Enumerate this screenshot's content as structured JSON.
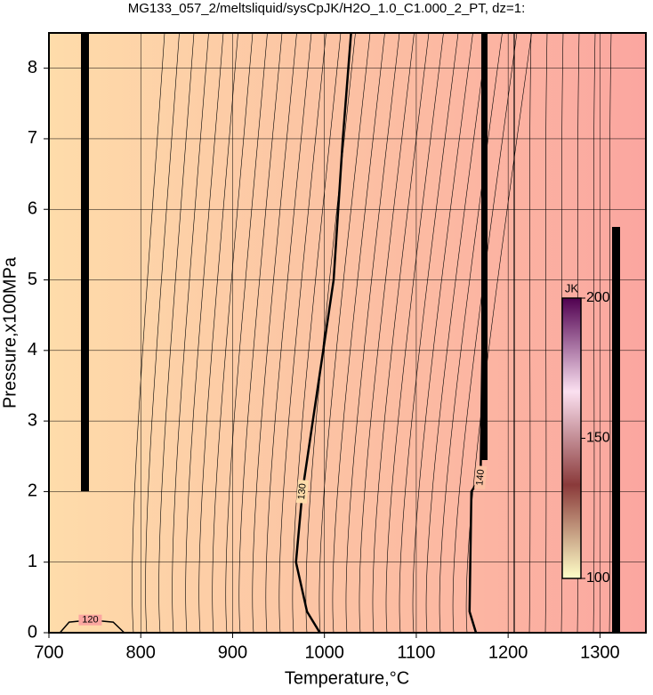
{
  "chart_data": {
    "type": "contour",
    "title": "MG133_057_2/meltsliquid/sysCpJK/H2O_1.0_C1.000_2_PT, dz=1:",
    "x_label": "Temperature,°C",
    "y_label": "Pressure,x100MPa",
    "xlim": [
      700,
      1350
    ],
    "xticks": [
      700,
      800,
      900,
      1000,
      1100,
      1200,
      1300
    ],
    "ylim": [
      0,
      8.5
    ],
    "yticks": [
      0,
      1,
      2,
      3,
      4,
      5,
      6,
      7,
      8
    ],
    "grid": true,
    "background_colors": [
      "#fedcaa",
      "#fcc1a3",
      "#fba6a0"
    ],
    "colorbar": {
      "label": "JK",
      "lim": [
        100,
        200
      ],
      "ticks": [
        100,
        150,
        200
      ],
      "colors": [
        "#ffffc8",
        "#8a3a3a",
        "#fbe0f0",
        "#500050"
      ]
    },
    "contours": [
      {
        "level": 130,
        "x": [
          995,
          981,
          969,
          976,
          1010,
          1020,
          1029
        ],
        "y": [
          0,
          0.3,
          1,
          2,
          5,
          7,
          8.5
        ]
      },
      {
        "level": 140,
        "x": [
          1165,
          1158,
          1160,
          1170,
          1172,
          1174,
          1176
        ],
        "y": [
          0,
          0.3,
          2.0,
          2.2,
          4,
          6,
          8.5
        ]
      },
      {
        "level": 120,
        "x": [
          712,
          722,
          745,
          770,
          782
        ],
        "y": [
          0,
          0.15,
          0.18,
          0.15,
          0
        ]
      }
    ]
  }
}
